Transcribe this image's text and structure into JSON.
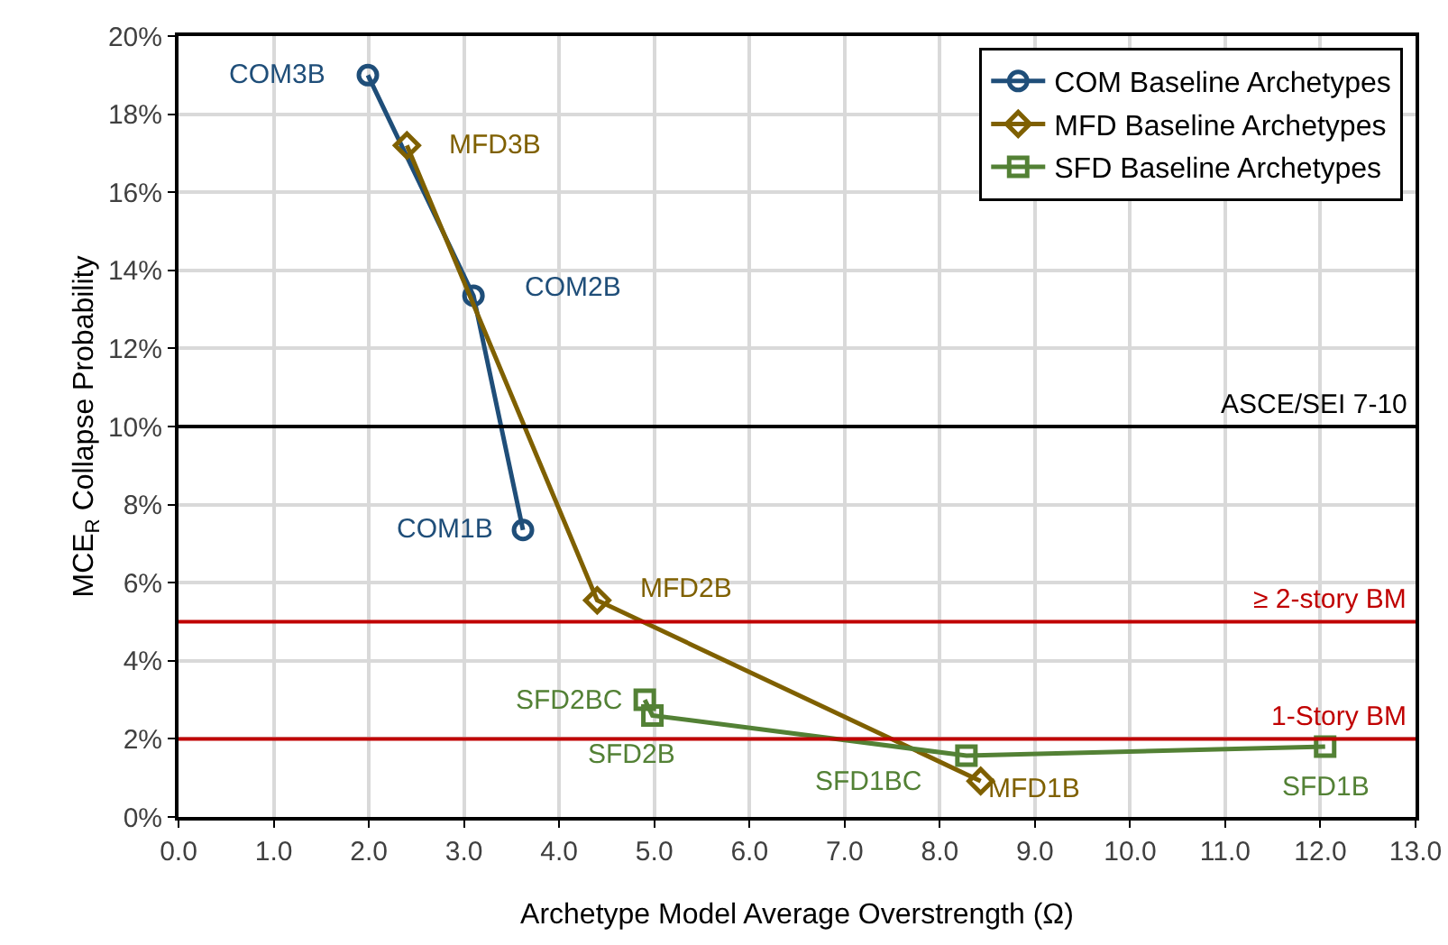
{
  "chart_data": {
    "type": "line",
    "xlabel": "Archetype Model Average Overstrength (Ω)",
    "ylabel": "MCE$_{R}$ Collapse Probability",
    "series": [
      {
        "name": "COM Baseline Archetypes",
        "color": "#1f4e79",
        "marker": "circle",
        "x": [
          1.99,
          3.1,
          3.62
        ],
        "values": [
          19.0,
          13.35,
          7.35
        ]
      },
      {
        "name": "MFD Baseline Archetypes",
        "color": "#7f6000",
        "marker": "diamond",
        "x": [
          2.4,
          4.4,
          8.43
        ],
        "values": [
          17.2,
          5.55,
          0.92
        ]
      },
      {
        "name": "SFD Baseline Archetypes",
        "color": "#538135",
        "marker": "square",
        "x": [
          4.9,
          4.98,
          8.28,
          12.05
        ],
        "values": [
          3.0,
          2.6,
          1.57,
          1.8
        ]
      }
    ],
    "annotations": [
      {
        "text": "COM3B",
        "x": 1.99,
        "y": 19.0
      },
      {
        "text": "MFD3B",
        "x": 2.4,
        "y": 17.2
      },
      {
        "text": "COM2B",
        "x": 3.1,
        "y": 13.35
      },
      {
        "text": "COM1B",
        "x": 3.62,
        "y": 7.35
      },
      {
        "text": "MFD2B",
        "x": 4.4,
        "y": 5.55
      },
      {
        "text": "SFD2BC",
        "x": 4.9,
        "y": 3.0
      },
      {
        "text": "SFD2B",
        "x": 4.98,
        "y": 2.6
      },
      {
        "text": "SFD1BC",
        "x": 8.28,
        "y": 1.57
      },
      {
        "text": "MFD1B",
        "x": 8.43,
        "y": 0.92
      },
      {
        "text": "SFD1B",
        "x": 12.05,
        "y": 1.8
      }
    ],
    "ref_lines": [
      {
        "axis": "y",
        "value": 10,
        "label": "ASCE/SEI 7-10",
        "color": "#000000"
      },
      {
        "axis": "y",
        "value": 5,
        "label": "≥ 2-story BM",
        "color": "#c00000"
      },
      {
        "axis": "y",
        "value": 2,
        "label": "1-Story BM",
        "color": "#c00000"
      }
    ],
    "xlim": [
      0,
      13
    ],
    "xticks": [
      {
        "value": 0,
        "label": "0.0"
      },
      {
        "value": 1,
        "label": "1.0"
      },
      {
        "value": 2,
        "label": "2.0"
      },
      {
        "value": 3,
        "label": "3.0"
      },
      {
        "value": 4,
        "label": "4.0"
      },
      {
        "value": 5,
        "label": "5.0"
      },
      {
        "value": 6,
        "label": "6.0"
      },
      {
        "value": 7,
        "label": "7.0"
      },
      {
        "value": 8,
        "label": "8.0"
      },
      {
        "value": 9,
        "label": "9.0"
      },
      {
        "value": 10,
        "label": "10.0"
      },
      {
        "value": 11,
        "label": "11.0"
      },
      {
        "value": 12,
        "label": "12.0"
      },
      {
        "value": 13,
        "label": "13.0"
      }
    ],
    "ylim": [
      0,
      20
    ],
    "yticks": [
      {
        "value": 0,
        "label": "0%"
      },
      {
        "value": 2,
        "label": "2%"
      },
      {
        "value": 4,
        "label": "4%"
      },
      {
        "value": 6,
        "label": "6%"
      },
      {
        "value": 8,
        "label": "8%"
      },
      {
        "value": 10,
        "label": "10%"
      },
      {
        "value": 12,
        "label": "12%"
      },
      {
        "value": 14,
        "label": "14%"
      },
      {
        "value": 16,
        "label": "16%"
      },
      {
        "value": 18,
        "label": "18%"
      },
      {
        "value": 20,
        "label": "20%"
      }
    ],
    "grid": true,
    "legend": "top right",
    "line_style": "solid"
  }
}
